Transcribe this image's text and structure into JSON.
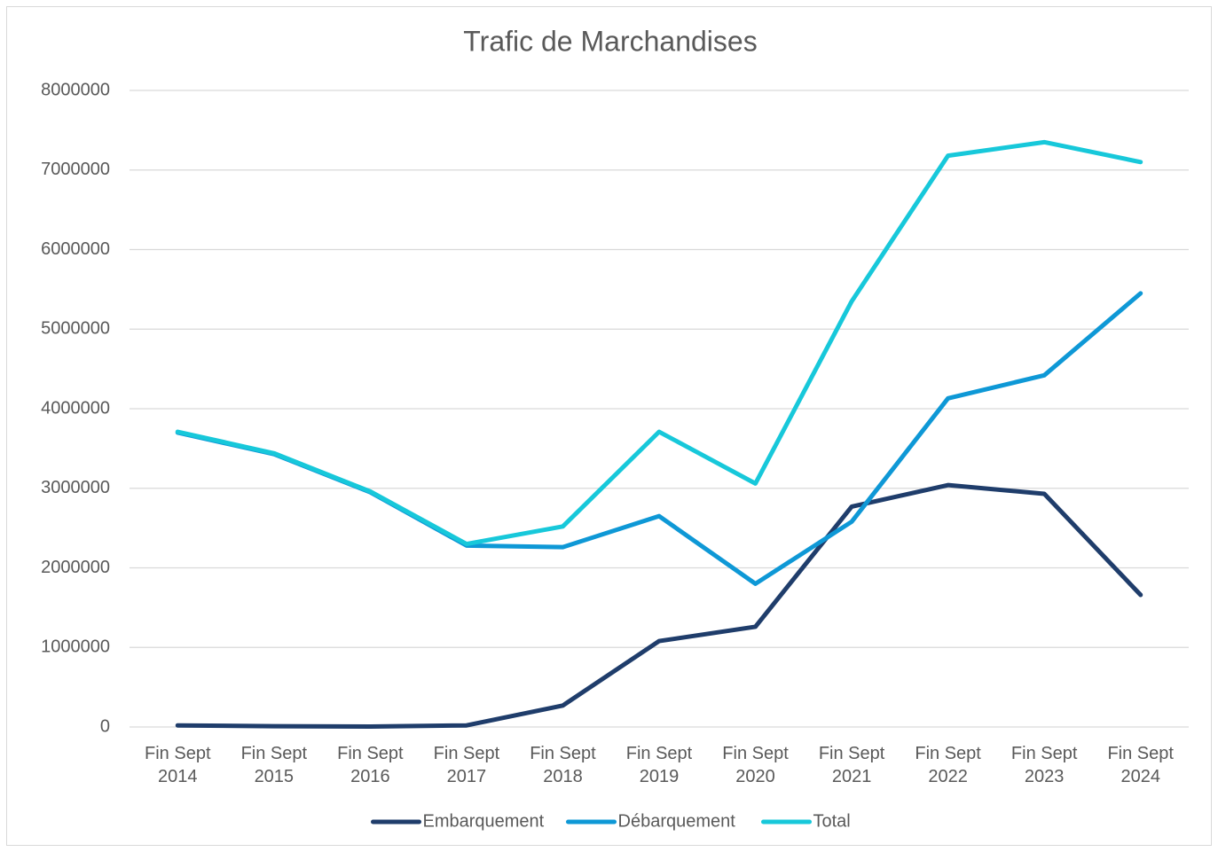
{
  "chart_data": {
    "type": "line",
    "title": "Trafic de Marchandises",
    "categories": [
      "Fin Sept 2014",
      "Fin Sept 2015",
      "Fin Sept 2016",
      "Fin Sept 2017",
      "Fin Sept 2018",
      "Fin Sept 2019",
      "Fin Sept 2020",
      "Fin Sept 2021",
      "Fin Sept 2022",
      "Fin Sept 2023",
      "Fin Sept 2024"
    ],
    "series": [
      {
        "name": "Embarquement",
        "color": "#1f3d6b",
        "values": [
          20000,
          10000,
          5000,
          20000,
          270000,
          1080000,
          1260000,
          2770000,
          3040000,
          2930000,
          1660000
        ]
      },
      {
        "name": "Débarquement",
        "color": "#0e98d6",
        "values": [
          3700000,
          3430000,
          2950000,
          2280000,
          2260000,
          2650000,
          1800000,
          2580000,
          4130000,
          4420000,
          5450000
        ]
      },
      {
        "name": "Total",
        "color": "#17c8da",
        "values": [
          3710000,
          3440000,
          2960000,
          2300000,
          2520000,
          3710000,
          3060000,
          5350000,
          7180000,
          7350000,
          7100000
        ]
      }
    ],
    "ylim": [
      0,
      8000000
    ],
    "yticks": [
      0,
      1000000,
      2000000,
      3000000,
      4000000,
      5000000,
      6000000,
      7000000,
      8000000
    ],
    "grid": true,
    "legend": "bottom"
  }
}
